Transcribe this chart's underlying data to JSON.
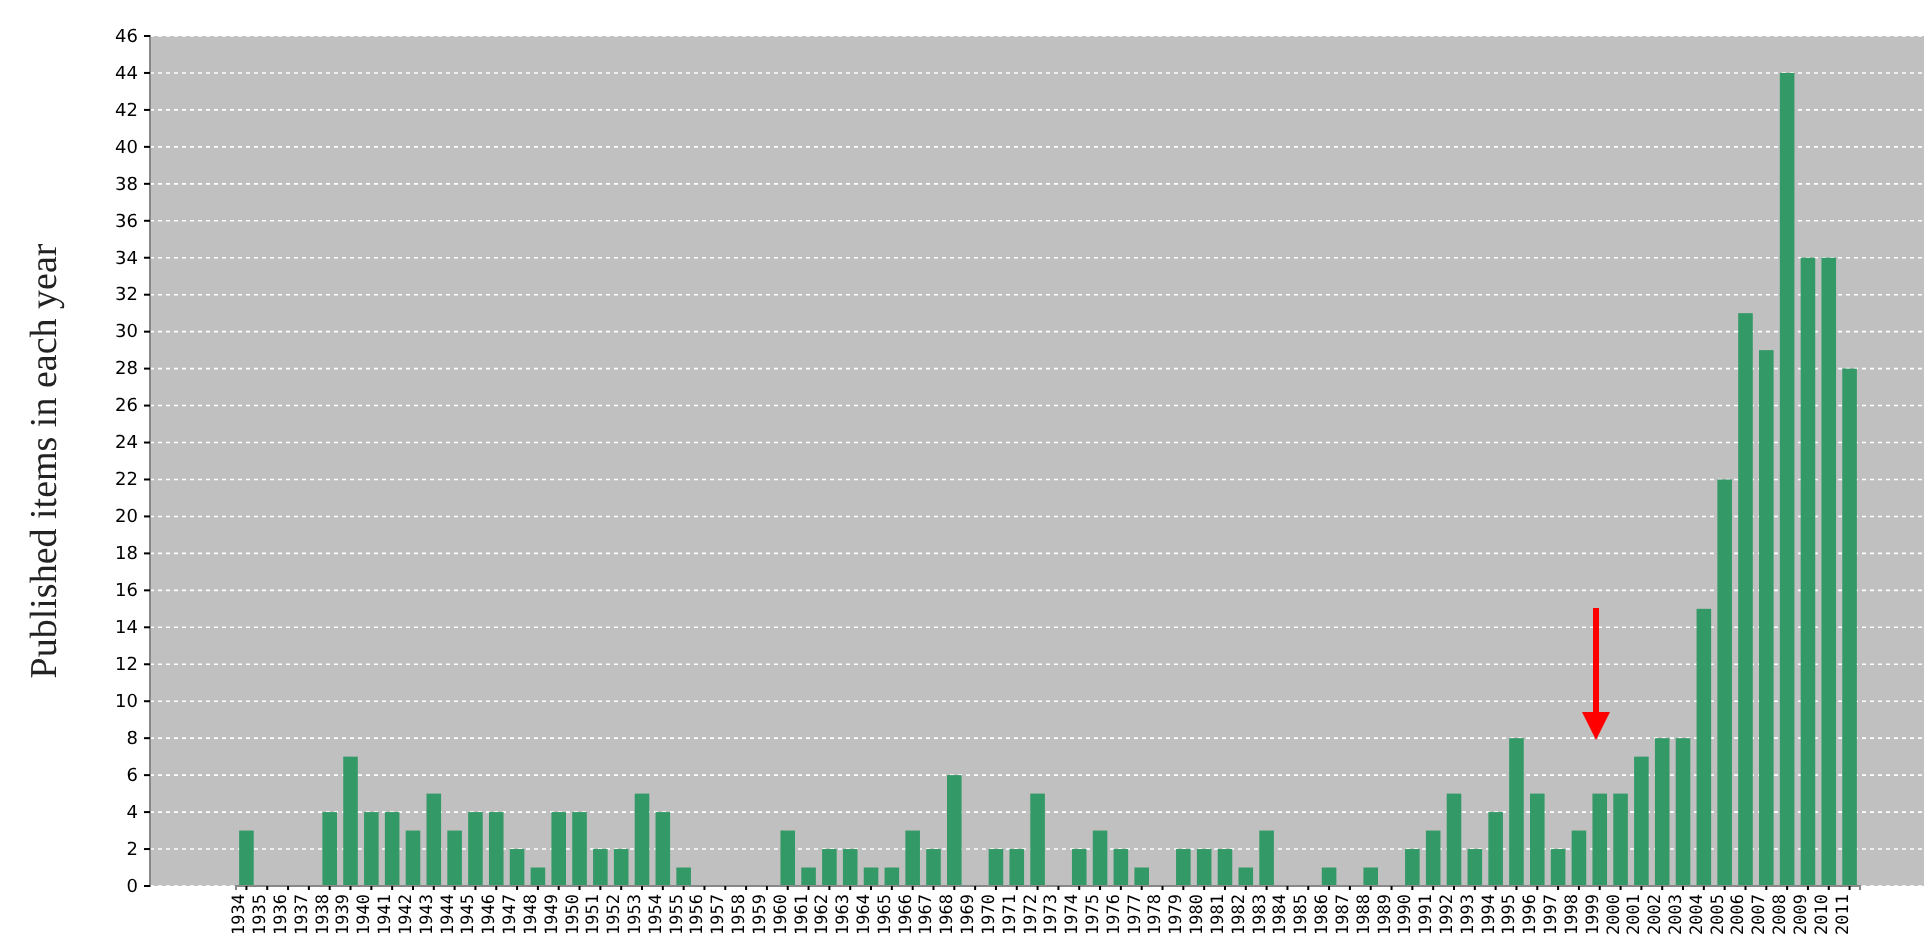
{
  "chart_data": {
    "type": "bar",
    "ylabel": "Published items in each year",
    "categories": [
      "1934",
      "1935",
      "1936",
      "1937",
      "1938",
      "1939",
      "1940",
      "1941",
      "1942",
      "1943",
      "1944",
      "1945",
      "1946",
      "1947",
      "1948",
      "1949",
      "1950",
      "1951",
      "1952",
      "1953",
      "1954",
      "1955",
      "1956",
      "1957",
      "1958",
      "1959",
      "1960",
      "1961",
      "1962",
      "1963",
      "1964",
      "1965",
      "1966",
      "1967",
      "1968",
      "1969",
      "1970",
      "1971",
      "1972",
      "1973",
      "1974",
      "1975",
      "1976",
      "1977",
      "1978",
      "1979",
      "1980",
      "1981",
      "1982",
      "1983",
      "1984",
      "1985",
      "1986",
      "1987",
      "1988",
      "1989",
      "1990",
      "1991",
      "1992",
      "1993",
      "1994",
      "1995",
      "1996",
      "1997",
      "1998",
      "1999",
      "2000",
      "2001",
      "2002",
      "2003",
      "2004",
      "2005",
      "2006",
      "2007",
      "2008",
      "2009",
      "2010",
      "2011"
    ],
    "values": [
      3,
      0,
      0,
      0,
      4,
      7,
      4,
      4,
      3,
      5,
      3,
      4,
      4,
      2,
      1,
      4,
      4,
      2,
      2,
      5,
      4,
      1,
      0,
      0,
      0,
      0,
      3,
      1,
      2,
      2,
      1,
      1,
      3,
      2,
      6,
      0,
      2,
      2,
      5,
      0,
      2,
      3,
      2,
      1,
      0,
      2,
      2,
      2,
      1,
      3,
      0,
      0,
      1,
      0,
      1,
      0,
      2,
      3,
      5,
      2,
      4,
      8,
      5,
      2,
      3,
      5,
      5,
      7,
      8,
      8,
      15,
      22,
      31,
      29,
      44,
      34,
      34,
      28
    ],
    "color": "#339966",
    "ylim": [
      0,
      46
    ],
    "yticks": [
      0,
      2,
      4,
      6,
      8,
      10,
      12,
      14,
      16,
      18,
      20,
      22,
      24,
      26,
      28,
      30,
      32,
      34,
      36,
      38,
      40,
      42,
      44,
      46
    ],
    "grid": "y"
  }
}
